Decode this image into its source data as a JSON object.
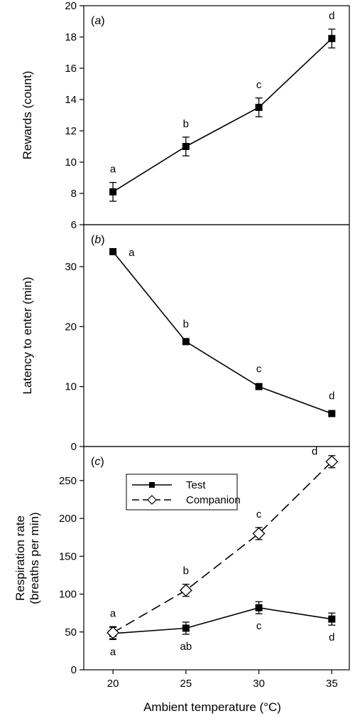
{
  "xlabel": "Ambient temperature (°C)",
  "chart_data": [
    {
      "type": "line",
      "panel_label": "a",
      "ylabel": "Rewards (count)",
      "ylabel_lines": [
        "Rewards (count)"
      ],
      "x": [
        20,
        25,
        30,
        35
      ],
      "xlim": [
        18,
        36.2
      ],
      "ylim": [
        6,
        20
      ],
      "yticks": [
        6,
        8,
        10,
        12,
        14,
        16,
        18,
        20
      ],
      "series": [
        {
          "values": [
            8.1,
            11.0,
            13.5,
            17.9
          ],
          "errors": [
            0.6,
            0.6,
            0.6,
            0.6
          ],
          "marker": "square-filled",
          "line": "solid",
          "labels": [
            "a",
            "b",
            "c",
            "d"
          ],
          "label_pos": [
            "above",
            "above",
            "above",
            "above"
          ]
        }
      ]
    },
    {
      "type": "line",
      "panel_label": "b",
      "ylabel": "Latency to enter (min)",
      "ylabel_lines": [
        "Latency to enter (min)"
      ],
      "x": [
        20,
        25,
        30,
        35
      ],
      "xlim": [
        18,
        36.2
      ],
      "ylim": [
        0,
        37
      ],
      "yticks": [
        0,
        10,
        20,
        30
      ],
      "series": [
        {
          "values": [
            32.5,
            17.5,
            10.0,
            5.5
          ],
          "errors": [
            0,
            0,
            0,
            0
          ],
          "marker": "square-filled",
          "line": "solid",
          "labels": [
            "a",
            "b",
            "c",
            "d"
          ],
          "label_pos": [
            "right",
            "above",
            "above",
            "above"
          ]
        }
      ]
    },
    {
      "type": "line",
      "panel_label": "c",
      "ylabel": "Respiration rate (breaths per min)",
      "ylabel_lines": [
        "Respiration rate",
        "(breaths per min)"
      ],
      "x": [
        20,
        25,
        30,
        35
      ],
      "xlim": [
        18,
        36.2
      ],
      "ylim": [
        0,
        295
      ],
      "yticks": [
        0,
        50,
        100,
        150,
        200,
        250
      ],
      "xticks": [
        20,
        25,
        30,
        35
      ],
      "legend": "upper-left",
      "series": [
        {
          "name": "Test",
          "values": [
            48,
            55,
            82,
            67
          ],
          "errors": [
            8,
            8,
            8,
            8
          ],
          "marker": "square-filled",
          "line": "solid",
          "labels": [
            "a",
            "ab",
            "c",
            "d"
          ],
          "label_pos": [
            "below",
            "below",
            "below",
            "below"
          ]
        },
        {
          "name": "Companion",
          "values": [
            49,
            105,
            180,
            275
          ],
          "errors": [
            8,
            8,
            8,
            8
          ],
          "marker": "diamond-open",
          "line": "dashed",
          "labels": [
            "a",
            "b",
            "c",
            "d"
          ],
          "label_pos": [
            "above",
            "above",
            "above",
            "left"
          ]
        }
      ]
    }
  ]
}
